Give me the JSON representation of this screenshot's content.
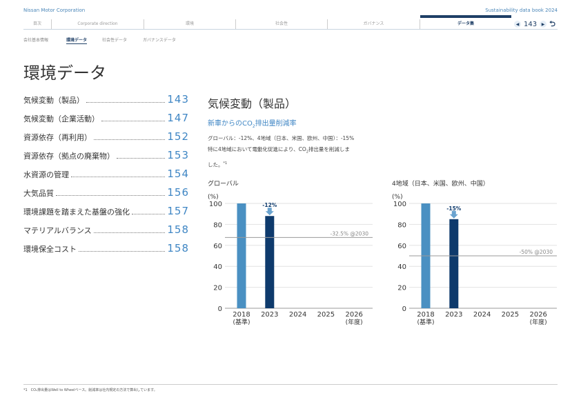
{
  "header": {
    "company": "Nissan Motor Corporation",
    "book": "Sustainability data book 2024",
    "tabs": [
      "目次",
      "Corporate direction",
      "環境",
      "社会性",
      "ガバナンス",
      "データ集"
    ],
    "active_tab": 5,
    "page": "143",
    "prev_icon": "triangle-left-icon",
    "next_icon": "triangle-right-icon",
    "return_icon": "return-arrow-icon"
  },
  "subtabs": [
    "会社基本情報",
    "環境データ",
    "社会性データ",
    "ガバナンスデータ"
  ],
  "active_subtab": 1,
  "page_title": "環境データ",
  "toc": [
    {
      "label": "気候変動（製品）",
      "page": "143"
    },
    {
      "label": "気候変動（企業活動）",
      "page": "147"
    },
    {
      "label": "資源依存（再利用）",
      "page": "152"
    },
    {
      "label": "資源依存（拠点の廃棄物）",
      "page": "153"
    },
    {
      "label": "水資源の管理",
      "page": "154"
    },
    {
      "label": "大気品質",
      "page": "156"
    },
    {
      "label": "環境課題を踏まえた基盤の強化",
      "page": "157"
    },
    {
      "label": "マテリアルバランス",
      "page": "158"
    },
    {
      "label": "環境保全コスト",
      "page": "158"
    }
  ],
  "section": {
    "title": "気候変動（製品）",
    "subtitle_pre": "新車からのCO",
    "subtitle_sub": "2",
    "subtitle_post": "排出量削減率",
    "line1": "グローバル：-12%、4地域（日本、米国、欧州、中国）：-15%",
    "line2a": "特に4地域において電動化促進により、CO",
    "line2sub": "2",
    "line2b": "排出量を削減しま",
    "line3": "した。",
    "line3sup": "*1"
  },
  "chart_data": [
    {
      "type": "bar",
      "title": "グローバル",
      "ylabel": "(%)",
      "ylim": [
        0,
        100
      ],
      "yticks": [
        "100",
        "80",
        "60",
        "40",
        "20",
        "0"
      ],
      "categories": [
        "2018",
        "2023",
        "2024",
        "2025",
        "2026"
      ],
      "category_sublabels": [
        "(基準)",
        "",
        "",
        "",
        "(年度)"
      ],
      "values": [
        100,
        88,
        null,
        null,
        null
      ],
      "bar_colors": [
        "#4a90c2",
        "#0e3a6c"
      ],
      "change_label": "-12%",
      "target_value": 67.5,
      "target_label": "-32.5% @2030",
      "grid": true
    },
    {
      "type": "bar",
      "title": "4地域（日本、米国、欧州、中国）",
      "ylabel": "(%)",
      "ylim": [
        0,
        100
      ],
      "yticks": [
        "100",
        "80",
        "60",
        "40",
        "20",
        "0"
      ],
      "categories": [
        "2018",
        "2023",
        "2024",
        "2025",
        "2026"
      ],
      "category_sublabels": [
        "(基準)",
        "",
        "",
        "",
        "(年度)"
      ],
      "values": [
        100,
        85,
        null,
        null,
        null
      ],
      "bar_colors": [
        "#4a90c2",
        "#0e3a6c"
      ],
      "change_label": "-15%",
      "target_value": 50,
      "target_label": "-50% @2030",
      "grid": true
    }
  ],
  "footnote": "*1　CO₂排出量はWell to Wheelベース。削減率は社内規定の方法で算出しています。"
}
